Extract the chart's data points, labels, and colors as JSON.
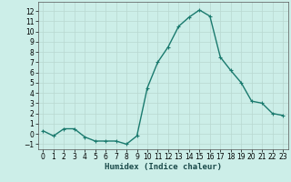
{
  "x": [
    0,
    1,
    2,
    3,
    4,
    5,
    6,
    7,
    8,
    9,
    10,
    11,
    12,
    13,
    14,
    15,
    16,
    17,
    18,
    19,
    20,
    21,
    22,
    23
  ],
  "y": [
    0.3,
    -0.2,
    0.5,
    0.5,
    -0.3,
    -0.7,
    -0.7,
    -0.7,
    -1.0,
    -0.2,
    4.5,
    7.0,
    8.5,
    10.5,
    11.4,
    12.1,
    11.5,
    7.5,
    6.2,
    5.0,
    3.2,
    3.0,
    2.0,
    1.8
  ],
  "line_color": "#1a7a6e",
  "marker": "+",
  "marker_size": 3,
  "bg_color": "#cceee8",
  "grid_color": "#b8d8d0",
  "xlabel": "Humidex (Indice chaleur)",
  "ylim": [
    -1.5,
    12.9
  ],
  "xlim": [
    -0.5,
    23.5
  ],
  "yticks": [
    -1,
    0,
    1,
    2,
    3,
    4,
    5,
    6,
    7,
    8,
    9,
    10,
    11,
    12
  ],
  "xticks": [
    0,
    1,
    2,
    3,
    4,
    5,
    6,
    7,
    8,
    9,
    10,
    11,
    12,
    13,
    14,
    15,
    16,
    17,
    18,
    19,
    20,
    21,
    22,
    23
  ],
  "tick_fontsize": 5.5,
  "xlabel_fontsize": 6.5,
  "linewidth": 1.0,
  "marker_edge_width": 0.8
}
